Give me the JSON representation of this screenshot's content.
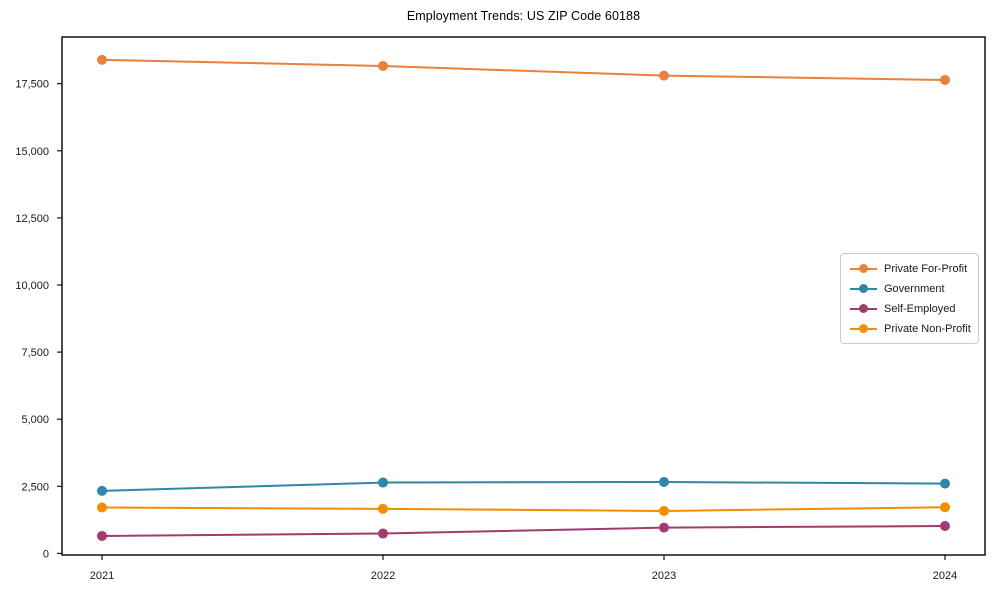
{
  "chart_data": {
    "type": "line",
    "title": "Employment Trends: US ZIP Code 60188",
    "categories": [
      "2021",
      "2022",
      "2023",
      "2024"
    ],
    "series": [
      {
        "name": "Private For-Profit",
        "color": "#e8813c",
        "values": [
          18390,
          18160,
          17800,
          17640
        ]
      },
      {
        "name": "Government",
        "color": "#2e86ab",
        "values": [
          2330,
          2640,
          2660,
          2600
        ]
      },
      {
        "name": "Self-Employed",
        "color": "#a23b72",
        "values": [
          650,
          740,
          960,
          1020
        ]
      },
      {
        "name": "Private Non-Profit",
        "color": "#f18f01",
        "values": [
          1710,
          1660,
          1580,
          1720
        ]
      }
    ],
    "xlabel": "",
    "ylabel": "",
    "ylim": [
      -60,
      19240
    ],
    "yticks": [
      0,
      2500,
      5000,
      7500,
      10000,
      12500,
      15000,
      17500
    ],
    "grid": false,
    "legend_position": "center-right",
    "background": "#ffffff",
    "axis_color": "#000000",
    "tick_label_color": "#1a1a1a"
  }
}
